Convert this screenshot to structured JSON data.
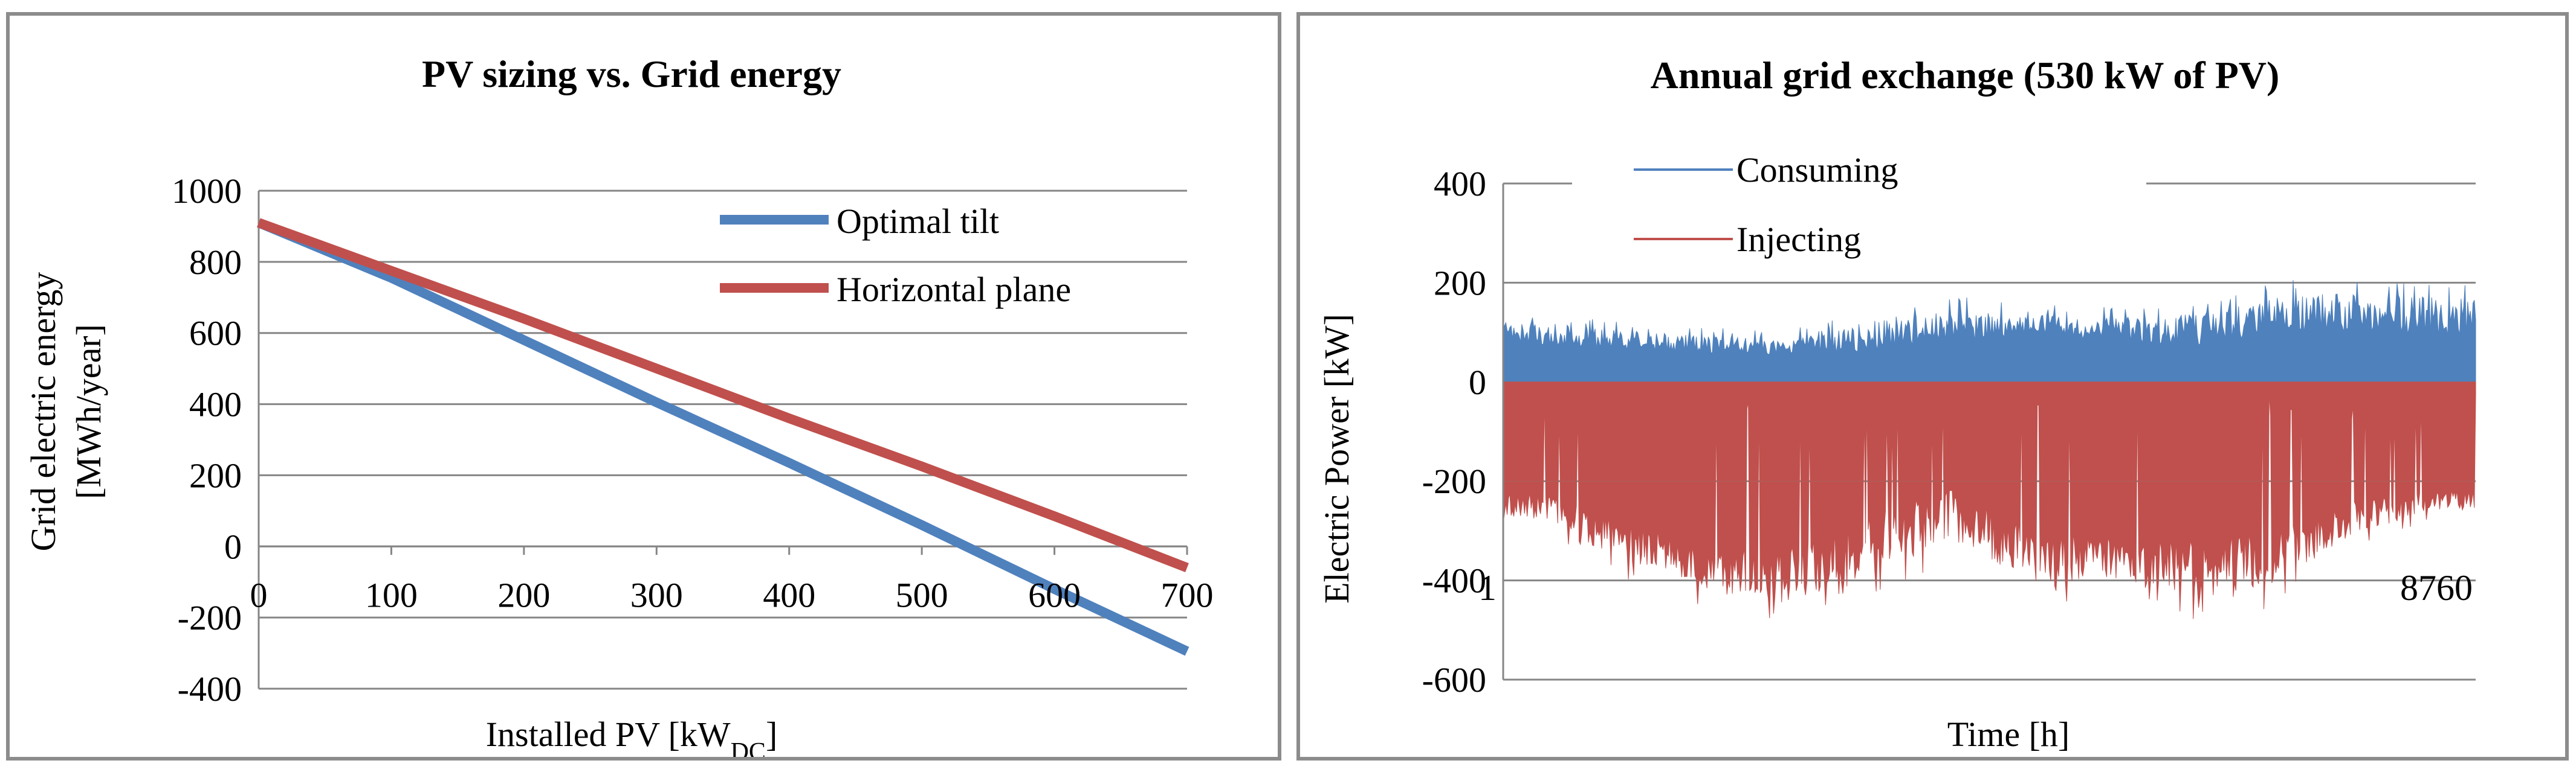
{
  "chart_data": [
    {
      "type": "line",
      "title": "PV sizing vs. Grid energy",
      "xlabel_main": "Installed PV  [kW",
      "xlabel_sub": "DC",
      "xlabel_end": "]",
      "ylabel_line1": "Grid electric energy",
      "ylabel_line2": "[MWh/year]",
      "xlim": [
        0,
        700
      ],
      "ylim": [
        -400,
        1000
      ],
      "xticks": [
        0,
        100,
        200,
        300,
        400,
        500,
        600,
        700
      ],
      "yticks": [
        -400,
        -200,
        0,
        200,
        400,
        600,
        800,
        1000
      ],
      "grid": true,
      "legend_position": "top-right",
      "series": [
        {
          "name": "Optimal tilt",
          "color": "#4f81bd",
          "x": [
            0,
            100,
            200,
            300,
            400,
            500,
            600,
            700
          ],
          "y": [
            910,
            755,
            580,
            405,
            235,
            60,
            -120,
            -295
          ]
        },
        {
          "name": "Horizontal plane",
          "color": "#c0504d",
          "x": [
            0,
            100,
            200,
            300,
            400,
            500,
            600,
            700
          ],
          "y": [
            910,
            775,
            640,
            500,
            360,
            225,
            85,
            -60
          ]
        }
      ]
    },
    {
      "type": "area",
      "title": "Annual grid exchange (530 kW of PV)",
      "xlabel": "Time [h]",
      "ylabel": "Electric Power  [kW]",
      "xlim": [
        1,
        8760
      ],
      "ylim": [
        -600,
        400
      ],
      "x_tick_labels": [
        "1",
        "8760"
      ],
      "yticks": [
        -600,
        -400,
        -200,
        0,
        200,
        400
      ],
      "grid": true,
      "legend_position": "top",
      "series": [
        {
          "name": "Consuming",
          "color": "#4f81bd",
          "monthly_typical_kw": [
            85,
            75,
            70,
            65,
            80,
            95,
            110,
            95,
            90,
            120,
            125,
            115
          ],
          "monthly_peak_kw": [
            140,
            120,
            110,
            105,
            150,
            175,
            160,
            150,
            165,
            205,
            215,
            205
          ]
        },
        {
          "name": "Injecting",
          "color": "#c0504d",
          "monthly_typical_kw": [
            -240,
            -300,
            -360,
            -370,
            -300,
            -250,
            -320,
            -340,
            -350,
            -330,
            -260,
            -230
          ],
          "monthly_peak_kw": [
            -300,
            -400,
            -460,
            -490,
            -440,
            -380,
            -450,
            -440,
            -480,
            -460,
            -330,
            -280
          ]
        }
      ]
    }
  ]
}
